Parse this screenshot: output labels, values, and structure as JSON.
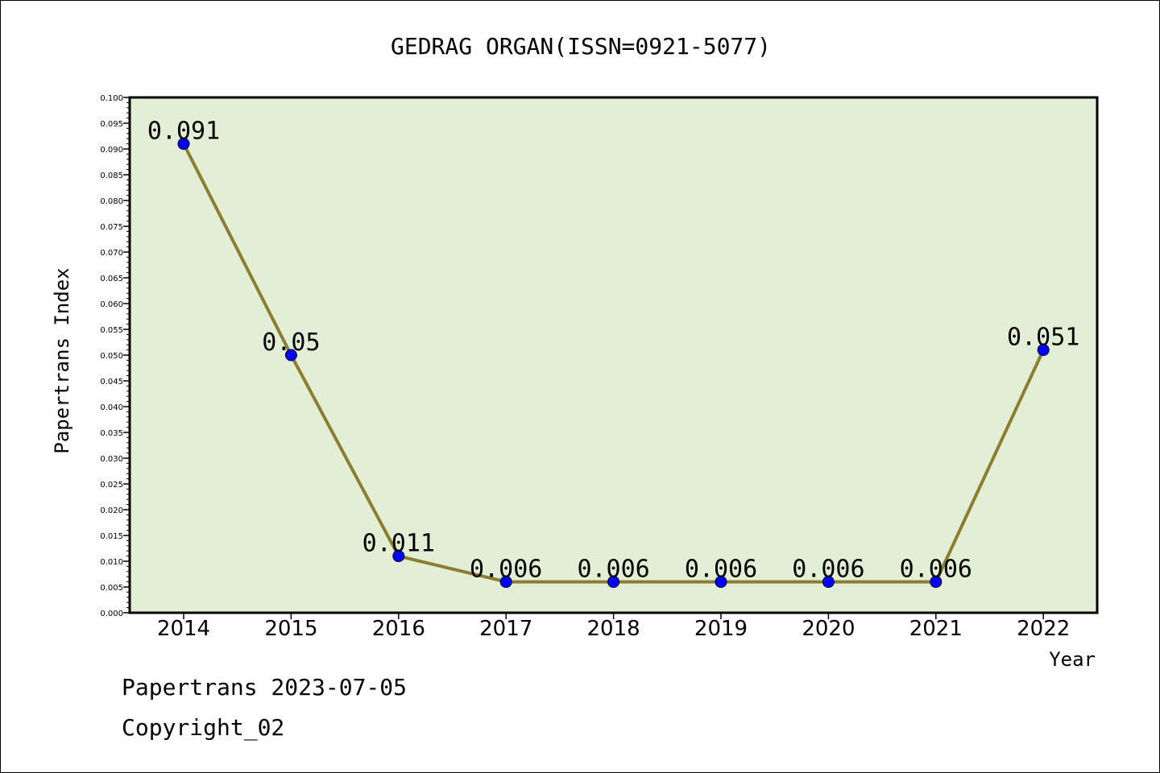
{
  "chart_data": {
    "type": "line",
    "title": "GEDRAG ORGAN(ISSN=0921-5077)",
    "xlabel": "Year",
    "ylabel": "Papertrans Index",
    "categories": [
      "2014",
      "2015",
      "2016",
      "2017",
      "2018",
      "2019",
      "2020",
      "2021",
      "2022"
    ],
    "series": [
      {
        "values": [
          0.091,
          0.05,
          0.011,
          0.006,
          0.006,
          0.006,
          0.006,
          0.006,
          0.051
        ],
        "labels": [
          "0.091",
          "0.05",
          "0.011",
          "0.006",
          "0.006",
          "0.006",
          "0.006",
          "0.006",
          "0.051"
        ]
      }
    ],
    "ylim": [
      0,
      0.1
    ],
    "ytick_step": 0.005,
    "yticks": [
      "0.000",
      "0.005",
      "0.010",
      "0.015",
      "0.020",
      "0.025",
      "0.030",
      "0.035",
      "0.040",
      "0.045",
      "0.050",
      "0.055",
      "0.060",
      "0.065",
      "0.070",
      "0.075",
      "0.080",
      "0.085",
      "0.090",
      "0.095",
      "0.100"
    ],
    "grid": false,
    "colors": {
      "plot_background": "#e2efd5",
      "line": "#8b7d32",
      "marker": "#0000ff"
    }
  },
  "footer": {
    "line1": "Papertrans 2023-07-05",
    "line2": "Copyright_02"
  }
}
